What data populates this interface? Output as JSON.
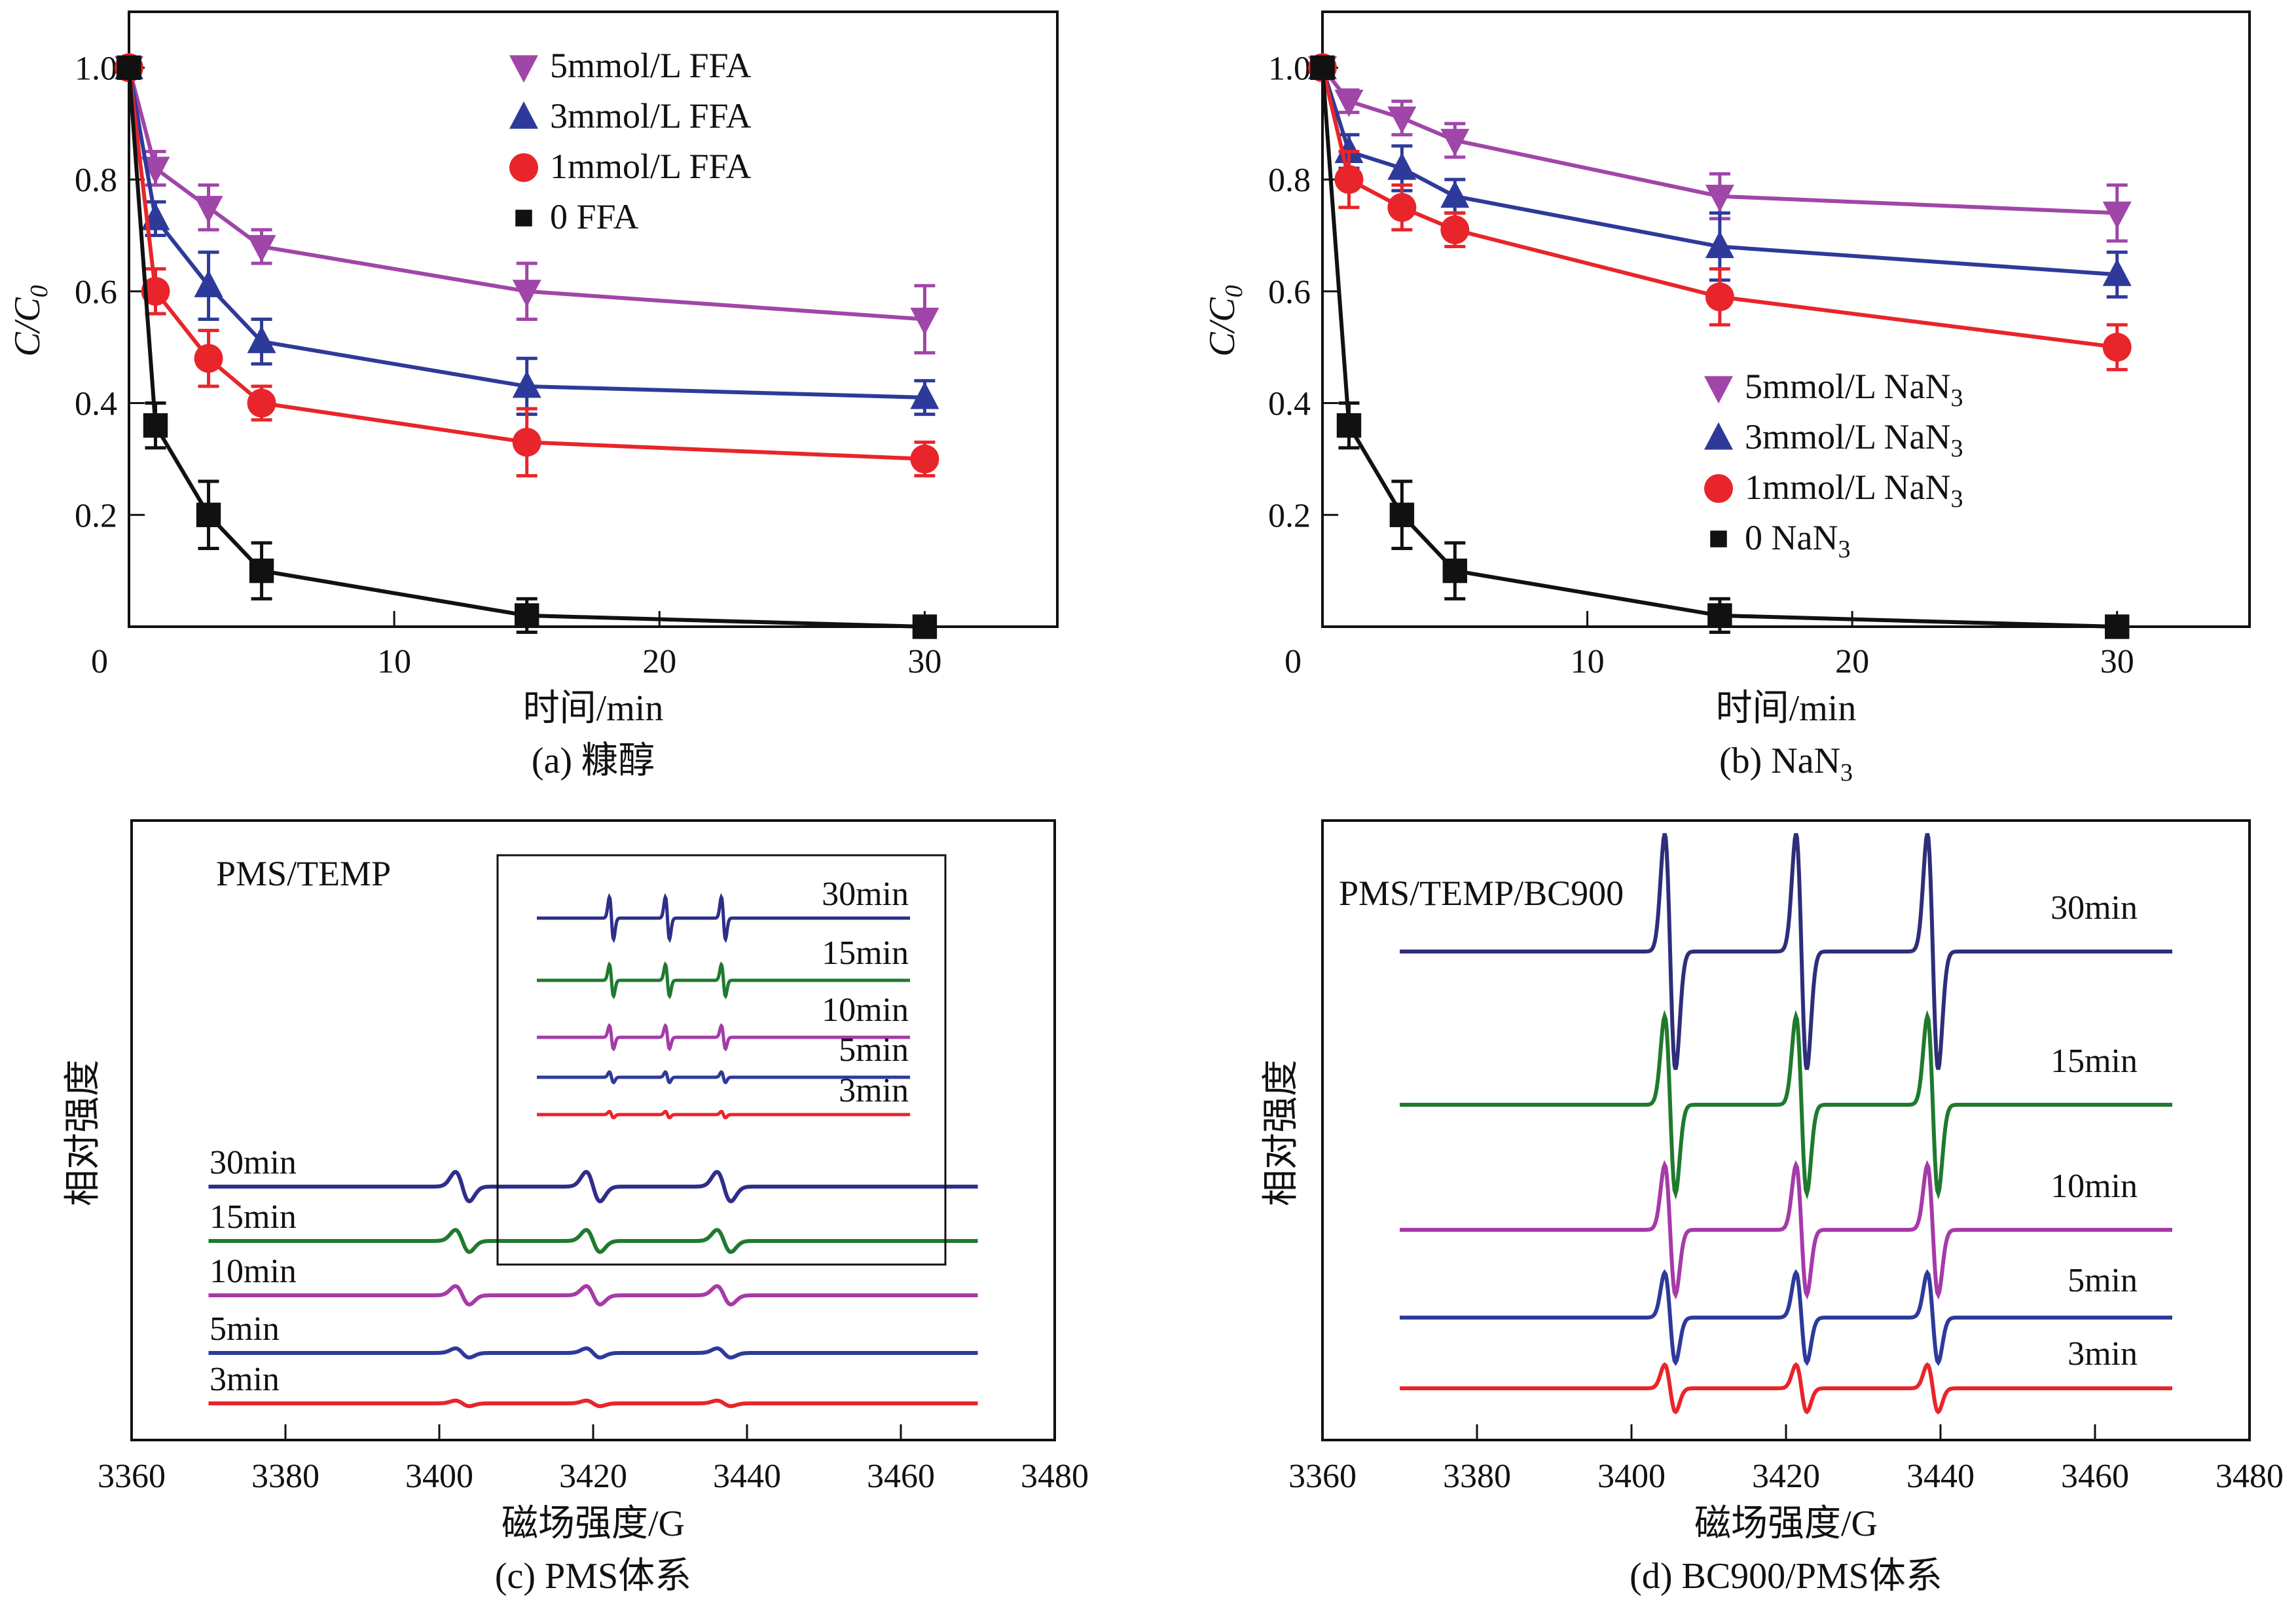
{
  "chart_data": [
    {
      "id": "a",
      "type": "line",
      "title": "",
      "caption": "(a) 糠醇",
      "xlabel": "时间/min",
      "ylabel": "C/C0",
      "xlim": [
        0,
        35
      ],
      "ylim": [
        0,
        1.1
      ],
      "xticks": [
        0,
        10,
        20,
        30
      ],
      "yticks": [
        0.2,
        0.4,
        0.6,
        0.8,
        1.0
      ],
      "ytick_labels": [
        "0.2",
        "0.4",
        "0.6",
        "0.8",
        "1.0"
      ],
      "xtick_labels": [
        "0",
        "10",
        "20",
        "30"
      ],
      "legend_position": "top-center",
      "x": [
        0,
        1,
        3,
        5,
        15,
        30
      ],
      "series": [
        {
          "name": "5mmol/L FFA",
          "marker": "triangle-down",
          "color": "#a046a8",
          "values": [
            1.0,
            0.82,
            0.75,
            0.68,
            0.6,
            0.55
          ],
          "errors": [
            0.01,
            0.03,
            0.04,
            0.03,
            0.05,
            0.06
          ]
        },
        {
          "name": "3mmol/L FFA",
          "marker": "triangle-up",
          "color": "#2e3a9a",
          "values": [
            1.0,
            0.73,
            0.61,
            0.51,
            0.43,
            0.41
          ],
          "errors": [
            0.01,
            0.03,
            0.06,
            0.04,
            0.05,
            0.03
          ]
        },
        {
          "name": "1mmol/L FFA",
          "marker": "circle",
          "color": "#e8252a",
          "values": [
            1.0,
            0.6,
            0.48,
            0.4,
            0.33,
            0.3
          ],
          "errors": [
            0.01,
            0.04,
            0.05,
            0.03,
            0.06,
            0.03
          ]
        },
        {
          "name": "0 FFA",
          "marker": "square",
          "color": "#111111",
          "values": [
            1.0,
            0.36,
            0.2,
            0.1,
            0.02,
            0.0
          ],
          "errors": [
            0.01,
            0.04,
            0.06,
            0.05,
            0.03,
            0.01
          ]
        }
      ]
    },
    {
      "id": "b",
      "type": "line",
      "title": "",
      "caption": "(b) NaN",
      "caption_sub": "3",
      "xlabel": "时间/min",
      "ylabel": "C/C0",
      "xlim": [
        0,
        35
      ],
      "ylim": [
        0,
        1.1
      ],
      "xticks": [
        0,
        10,
        20,
        30
      ],
      "yticks": [
        0.2,
        0.4,
        0.6,
        0.8,
        1.0
      ],
      "ytick_labels": [
        "0.2",
        "0.4",
        "0.6",
        "0.8",
        "1.0"
      ],
      "xtick_labels": [
        "0",
        "10",
        "20",
        "30"
      ],
      "legend_position": "center-right",
      "x": [
        0,
        1,
        3,
        5,
        15,
        30
      ],
      "series": [
        {
          "name": "5mmol/L NaN",
          "sub": "3",
          "marker": "triangle-down",
          "color": "#a046a8",
          "values": [
            1.0,
            0.94,
            0.91,
            0.87,
            0.77,
            0.74
          ],
          "errors": [
            0.01,
            0.02,
            0.03,
            0.03,
            0.04,
            0.05
          ]
        },
        {
          "name": "3mmol/L NaN",
          "sub": "3",
          "marker": "triangle-up",
          "color": "#2e3a9a",
          "values": [
            1.0,
            0.85,
            0.82,
            0.77,
            0.68,
            0.63
          ],
          "errors": [
            0.01,
            0.03,
            0.04,
            0.03,
            0.06,
            0.04
          ]
        },
        {
          "name": "1mmol/L NaN",
          "sub": "3",
          "marker": "circle",
          "color": "#e8252a",
          "values": [
            1.0,
            0.8,
            0.75,
            0.71,
            0.59,
            0.5
          ],
          "errors": [
            0.01,
            0.05,
            0.04,
            0.03,
            0.05,
            0.04
          ]
        },
        {
          "name": "0 NaN",
          "sub": "3",
          "marker": "square",
          "color": "#111111",
          "values": [
            1.0,
            0.36,
            0.2,
            0.1,
            0.02,
            0.0
          ],
          "errors": [
            0.01,
            0.04,
            0.06,
            0.05,
            0.03,
            0.01
          ]
        }
      ]
    },
    {
      "id": "c",
      "type": "line",
      "title": "",
      "caption": "(c) PMS体系",
      "annotation": "PMS/TEMP",
      "xlabel": "磁场强度/G",
      "ylabel": "相对强度",
      "xlim": [
        3360,
        3480
      ],
      "xticks": [
        3360,
        3380,
        3400,
        3420,
        3440,
        3460,
        3480
      ],
      "xtick_labels": [
        "3360",
        "3380",
        "3400",
        "3420",
        "3440",
        "3460",
        "3480"
      ],
      "x_range_data": [
        3370,
        3470
      ],
      "peak_centers": [
        3403,
        3420,
        3437
      ],
      "series": [
        {
          "name": "30min",
          "color": "#2e2e8a",
          "amplitude": 0.8
        },
        {
          "name": "15min",
          "color": "#1f7a2e",
          "amplitude": 0.6
        },
        {
          "name": "10min",
          "color": "#a63aa8",
          "amplitude": 0.5
        },
        {
          "name": "5min",
          "color": "#2e3a9a",
          "amplitude": 0.25
        },
        {
          "name": "3min",
          "color": "#e8252a",
          "amplitude": 0.15
        }
      ],
      "inset": {
        "series": [
          {
            "name": "30min",
            "color": "#2e2e8a",
            "amplitude": 1.0
          },
          {
            "name": "15min",
            "color": "#1f7a2e",
            "amplitude": 0.75
          },
          {
            "name": "10min",
            "color": "#a63aa8",
            "amplitude": 0.55
          },
          {
            "name": "5min",
            "color": "#2e3a9a",
            "amplitude": 0.25
          },
          {
            "name": "3min",
            "color": "#e8252a",
            "amplitude": 0.15
          }
        ]
      }
    },
    {
      "id": "d",
      "type": "line",
      "title": "",
      "caption": "(d) BC900/PMS体系",
      "annotation": "PMS/TEMP/BC900",
      "xlabel": "磁场强度/G",
      "ylabel": "相对强度",
      "xlim": [
        3360,
        3480
      ],
      "xticks": [
        3360,
        3380,
        3400,
        3420,
        3440,
        3460,
        3480
      ],
      "xtick_labels": [
        "3360",
        "3380",
        "3400",
        "3420",
        "3440",
        "3460",
        "3480"
      ],
      "x_range_data": [
        3370,
        3470
      ],
      "peak_centers": [
        3405,
        3422,
        3439
      ],
      "series": [
        {
          "name": "30min",
          "color": "#2e2e7a",
          "amplitude": 1.0
        },
        {
          "name": "15min",
          "color": "#1f7a2e",
          "amplitude": 0.75
        },
        {
          "name": "10min",
          "color": "#a63aa8",
          "amplitude": 0.55
        },
        {
          "name": "5min",
          "color": "#2e3a9a",
          "amplitude": 0.38
        },
        {
          "name": "3min",
          "color": "#e8252a",
          "amplitude": 0.2
        }
      ]
    }
  ]
}
